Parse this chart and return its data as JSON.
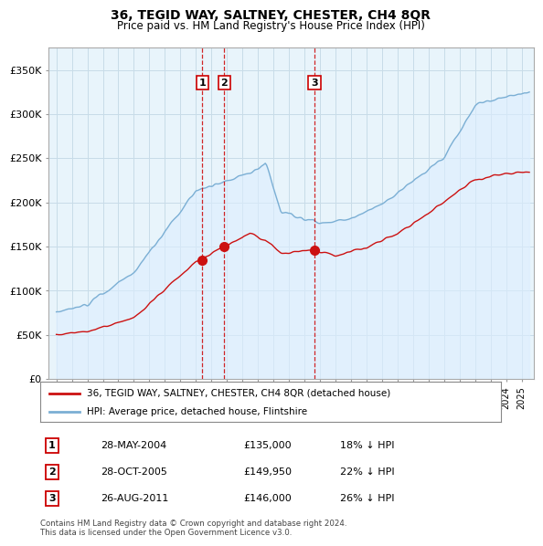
{
  "title": "36, TEGID WAY, SALTNEY, CHESTER, CH4 8QR",
  "subtitle": "Price paid vs. HM Land Registry's House Price Index (HPI)",
  "legend_line1": "36, TEGID WAY, SALTNEY, CHESTER, CH4 8QR (detached house)",
  "legend_line2": "HPI: Average price, detached house, Flintshire",
  "hpi_color": "#7bafd4",
  "hpi_fill_color": "#ddeeff",
  "price_color": "#cc1111",
  "table": [
    {
      "num": "1",
      "date": "28-MAY-2004",
      "price": "£135,000",
      "hpi": "18% ↓ HPI"
    },
    {
      "num": "2",
      "date": "28-OCT-2005",
      "price": "£149,950",
      "hpi": "22% ↓ HPI"
    },
    {
      "num": "3",
      "date": "26-AUG-2011",
      "price": "£146,000",
      "hpi": "26% ↓ HPI"
    }
  ],
  "footer": "Contains HM Land Registry data © Crown copyright and database right 2024.\nThis data is licensed under the Open Government Licence v3.0.",
  "ylim": [
    0,
    375000
  ],
  "yticks": [
    0,
    50000,
    100000,
    150000,
    200000,
    250000,
    300000,
    350000
  ],
  "ytick_labels": [
    "£0",
    "£50K",
    "£100K",
    "£150K",
    "£200K",
    "£250K",
    "£300K",
    "£350K"
  ],
  "sale_years": [
    2004.41,
    2005.83,
    2011.65
  ],
  "sale_prices": [
    135000,
    149950,
    146000
  ],
  "sale_labels": [
    "1",
    "2",
    "3"
  ],
  "background_color": "#ffffff",
  "chart_bg_color": "#e8f4fb",
  "grid_color": "#c8dce8",
  "xlim": [
    1994.5,
    2025.8
  ],
  "xticks_start": 1995,
  "xticks_end": 2025
}
